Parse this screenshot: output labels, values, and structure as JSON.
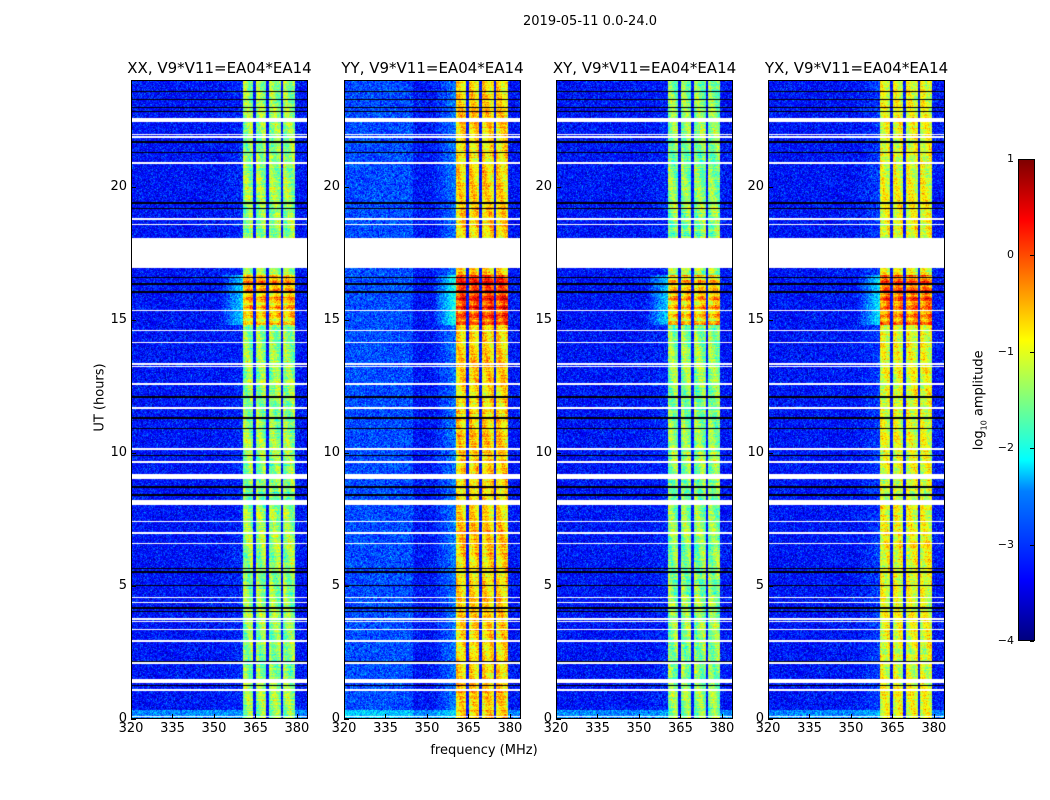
{
  "title": "2019-05-11 0.0-24.0",
  "xlabel": "frequency (MHz)",
  "ylabel": "UT (hours)",
  "colorbar": {
    "label_prefix": "log",
    "label_sub": "10",
    "label_suffix": " amplitude",
    "ticks": [
      "1",
      "0",
      "−1",
      "−2",
      "−3",
      "−4"
    ],
    "tick_values": [
      1,
      0,
      -1,
      -2,
      -3,
      -4
    ],
    "vmin": -4,
    "vmax": 1,
    "colormap": "jet"
  },
  "chart_data": {
    "type": "heatmap",
    "xlim": [
      320,
      384
    ],
    "ylim": [
      0,
      24
    ],
    "xticks": [
      320,
      335,
      350,
      365,
      380
    ],
    "xtick_labels": [
      "320",
      "335",
      "350",
      "365",
      "380"
    ],
    "yticks": [
      0,
      5,
      10,
      15,
      20
    ],
    "ytick_labels": [
      "0",
      "5",
      "10",
      "15",
      "20"
    ],
    "band_mhz": [
      360.5,
      379.5
    ],
    "band_gaps_mhz": [
      364.8,
      369.5,
      374.9
    ],
    "background_log_amp": -3.3,
    "rfi_burst_hours": [
      14.8,
      16.7
    ],
    "flagged_hours": [
      [
        16.95,
        18.1
      ],
      [
        22.45,
        22.6
      ],
      [
        21.95,
        22.02
      ],
      [
        21.87,
        21.93
      ],
      [
        20.87,
        20.93
      ],
      [
        18.77,
        18.83
      ],
      [
        18.57,
        18.63
      ],
      [
        15.33,
        15.39
      ],
      [
        14.57,
        14.63
      ],
      [
        14.12,
        14.18
      ],
      [
        13.3,
        13.36
      ],
      [
        13.22,
        13.28
      ],
      [
        12.55,
        12.61
      ],
      [
        11.65,
        11.71
      ],
      [
        10.11,
        10.17
      ],
      [
        9.62,
        9.68
      ],
      [
        9.0,
        9.2
      ],
      [
        8.03,
        8.2
      ],
      [
        7.37,
        7.43
      ],
      [
        6.95,
        7.01
      ],
      [
        6.54,
        6.6
      ],
      [
        4.51,
        4.57
      ],
      [
        4.32,
        4.38
      ],
      [
        3.69,
        3.75
      ],
      [
        3.61,
        3.67
      ],
      [
        3.31,
        3.37
      ],
      [
        2.86,
        2.92
      ],
      [
        2.04,
        2.1
      ],
      [
        1.4,
        1.46
      ],
      [
        1.32,
        1.38
      ],
      [
        1.02,
        1.08
      ],
      [
        0.02,
        0.07
      ]
    ],
    "dropout_hours": [
      23.6,
      23.3,
      23.0,
      22.85,
      21.7,
      21.3,
      19.4,
      19.2,
      16.6,
      16.35,
      16.05,
      12.1,
      11.3,
      10.9,
      9.9,
      8.7,
      8.4,
      5.62,
      5.5,
      5.0,
      4.15,
      4.0,
      2.12,
      1.22
    ],
    "series": [
      {
        "name": "XX, V9*V11=EA04*EA14",
        "band_log_amp": -1.4,
        "low_edge_log_amp": -3.2
      },
      {
        "name": "YY, V9*V11=EA04*EA14",
        "band_log_amp": -0.7,
        "low_edge_log_amp": -2.8
      },
      {
        "name": "XY, V9*V11=EA04*EA14",
        "band_log_amp": -1.45,
        "low_edge_log_amp": -3.2
      },
      {
        "name": "YX, V9*V11=EA04*EA14",
        "band_log_amp": -1.0,
        "low_edge_log_amp": -3.1
      }
    ]
  }
}
